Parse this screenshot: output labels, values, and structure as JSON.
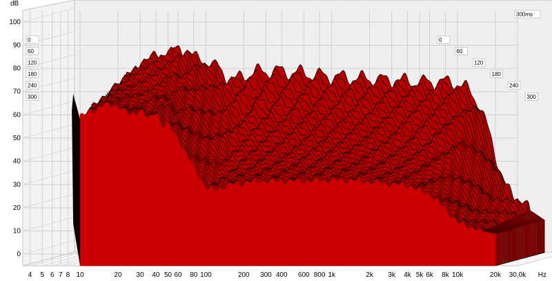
{
  "chart_data": {
    "type": "waterfall",
    "title": "",
    "ylabel": "dB",
    "xlabel": "Hz",
    "ylim": [
      -5,
      105
    ],
    "xlim": [
      3.5,
      30000
    ],
    "x_scale": "log",
    "grid": true,
    "y_ticks": [
      "100",
      "90",
      "80",
      "70",
      "60",
      "50",
      "40",
      "30",
      "20",
      "10",
      "0"
    ],
    "x_ticks": [
      {
        "f": 4,
        "label": "4"
      },
      {
        "f": 5,
        "label": "5"
      },
      {
        "f": 6,
        "label": "6"
      },
      {
        "f": 7,
        "label": "7"
      },
      {
        "f": 8,
        "label": "8"
      },
      {
        "f": 10,
        "label": "10"
      },
      {
        "f": 20,
        "label": "20"
      },
      {
        "f": 30,
        "label": "30"
      },
      {
        "f": 40,
        "label": "40"
      },
      {
        "f": 50,
        "label": "50"
      },
      {
        "f": 60,
        "label": "60"
      },
      {
        "f": 80,
        "label": "80"
      },
      {
        "f": 100,
        "label": "100"
      },
      {
        "f": 200,
        "label": "200"
      },
      {
        "f": 300,
        "label": "300"
      },
      {
        "f": 400,
        "label": "400"
      },
      {
        "f": 600,
        "label": "600"
      },
      {
        "f": 800,
        "label": "800"
      },
      {
        "f": 1000,
        "label": "1k"
      },
      {
        "f": 2000,
        "label": "2k"
      },
      {
        "f": 3000,
        "label": "3k"
      },
      {
        "f": 4000,
        "label": "4k"
      },
      {
        "f": 5000,
        "label": "5k"
      },
      {
        "f": 6000,
        "label": "6k"
      },
      {
        "f": 8000,
        "label": "8k"
      },
      {
        "f": 10000,
        "label": "10k"
      },
      {
        "f": 20000,
        "label": "20k"
      },
      {
        "f": 30000,
        "label": "30,0k"
      }
    ],
    "time_axis_label": "300ms",
    "time_labels_left": [
      "0",
      "60",
      "120",
      "180",
      "240",
      "300"
    ],
    "time_labels_right": [
      "0",
      "60",
      "120",
      "180",
      "240",
      "300"
    ],
    "slices_ms": [
      0,
      60,
      120,
      180,
      240,
      300
    ],
    "series": [
      {
        "freqs": [
          10,
          12,
          15,
          20,
          25,
          30,
          35,
          40,
          45,
          50,
          60,
          70,
          80,
          100,
          130,
          160,
          200,
          250,
          300,
          400,
          500,
          600,
          800,
          1000,
          1500,
          2000,
          3000,
          4000,
          5000,
          6000,
          8000,
          10000,
          15000,
          20000
        ],
        "values": [
          70,
          76,
          83,
          82,
          85,
          80,
          73,
          79,
          75,
          77,
          72,
          66,
          72,
          74,
          76,
          75,
          74,
          74,
          73,
          72,
          72,
          71,
          71,
          70,
          70,
          69,
          69,
          69,
          67,
          60,
          40,
          22,
          12,
          9
        ]
      }
    ],
    "decay_curves": [
      {
        "freqs": [
          10,
          20,
          30,
          40,
          60,
          100,
          200,
          400,
          1000,
          2000,
          4000,
          6000,
          10000,
          20000
        ],
        "values": [
          70,
          79,
          82,
          78,
          70,
          72,
          72,
          70,
          69,
          68,
          68,
          60,
          22,
          9
        ]
      },
      {
        "freqs": [
          10,
          20,
          30,
          40,
          60,
          100,
          200,
          400,
          1000,
          2000,
          4000,
          6000,
          10000,
          20000
        ],
        "values": [
          68,
          74,
          76,
          72,
          60,
          50,
          50,
          53,
          55,
          55,
          55,
          50,
          18,
          9
        ]
      },
      {
        "freqs": [
          10,
          20,
          30,
          40,
          60,
          100,
          200,
          400,
          1000,
          2000,
          4000,
          6000,
          10000,
          20000
        ],
        "values": [
          65,
          68,
          70,
          66,
          55,
          38,
          40,
          42,
          45,
          42,
          42,
          38,
          15,
          9
        ]
      },
      {
        "freqs": [
          10,
          20,
          30,
          40,
          60,
          100,
          200,
          400,
          1000,
          2000,
          4000,
          6000,
          10000,
          20000
        ],
        "values": [
          62,
          66,
          65,
          62,
          52,
          30,
          33,
          35,
          38,
          35,
          34,
          30,
          13,
          9
        ]
      },
      {
        "freqs": [
          10,
          20,
          30,
          40,
          60,
          100,
          200,
          400,
          1000,
          2000,
          4000,
          6000,
          10000,
          20000
        ],
        "values": [
          60,
          65,
          63,
          61,
          52,
          28,
          30,
          32,
          33,
          32,
          31,
          27,
          12,
          9
        ]
      }
    ],
    "front_values": {
      "freqs": [
        10,
        12,
        15,
        20,
        25,
        30,
        35,
        40,
        45,
        50,
        60,
        70,
        80,
        90,
        100,
        120,
        150,
        200,
        250,
        300,
        400,
        500,
        600,
        800,
        1000,
        1500,
        2000,
        3000,
        4000,
        5000,
        6000,
        8000,
        10000,
        15000,
        20000
      ],
      "values": [
        58,
        61,
        66,
        62,
        51,
        61,
        50,
        63,
        48,
        55,
        45,
        38,
        35,
        32,
        28,
        26,
        30,
        32,
        32,
        31,
        30,
        29,
        29,
        29,
        29,
        30,
        29,
        27,
        26,
        24,
        23,
        20,
        17,
        10,
        8
      ]
    }
  }
}
